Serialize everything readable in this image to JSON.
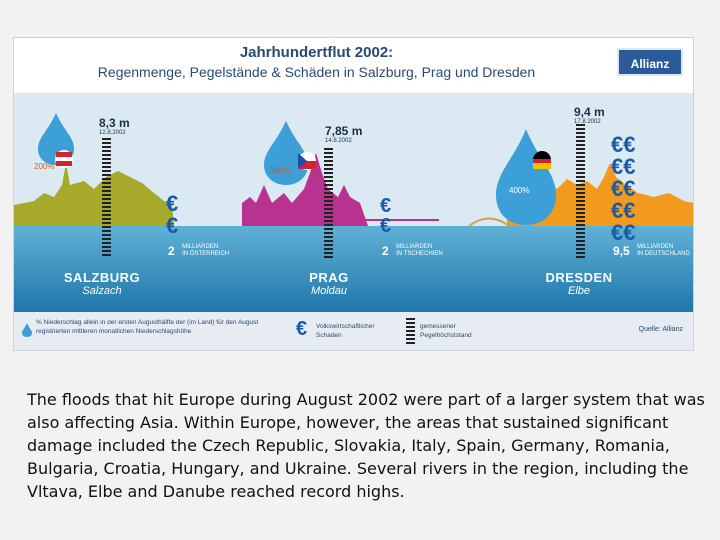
{
  "infographic": {
    "title": "Jahrhundertflut 2002:",
    "subtitle": "Regenmenge, Pegelstände & Schäden in Salzburg, Prag und Dresden",
    "logo_text": "Allianz",
    "cities": [
      {
        "name": "SALZBURG",
        "river": "Salzach",
        "level": "8,3 m",
        "date": "12.8.2002",
        "precip_pct": "200%",
        "damage_value": "2",
        "damage_unit_1": "MILLIARDEN",
        "damage_unit_2": "IN ÖSTERREICH",
        "flag": "austria"
      },
      {
        "name": "PRAG",
        "river": "Moldau",
        "level": "7,85 m",
        "date": "14.8.2002",
        "precip_pct": "300%",
        "damage_value": "2",
        "damage_unit_1": "MILLIARDEN",
        "damage_unit_2": "IN TSCHECHIEN",
        "flag": "czech"
      },
      {
        "name": "DRESDEN",
        "river": "Elbe",
        "level": "9,4 m",
        "date": "17.8.2002",
        "precip_pct": "400%",
        "damage_value": "9,5",
        "damage_unit_1": "MILLIARDEN",
        "damage_unit_2": "IN DEUTSCHLAND",
        "flag": "germany"
      }
    ],
    "legend": {
      "drop_text": "% Niederschlag allein in der ersten Augusthälfte der (im Land) für den August registrierten mittleren monatlichen Niederschlagshöhe",
      "euro_text": "Volkswirtschaftlicher Schaden",
      "gauge_text": "gemessener Pegelhöchststand",
      "source": "Quelle: Allianz"
    }
  },
  "caption": "The floods that hit Europe during August 2002 were part of a larger system that was also affecting Asia. Within Europe, however, the areas that sustained significant damage included the Czech Republic, Slovakia, Italy, Spain, Germany, Romania, Bulgaria, Croatia, Hungary, and Ukraine. Several rivers in the region, including the Vltava, Elbe and Danube reached record highs.",
  "colors": {
    "salzburg": "#a7a92b",
    "prag": "#b8338f",
    "dresden": "#f29a1e",
    "drop": "#3d9fd8",
    "euro": "#1a5aa8"
  }
}
